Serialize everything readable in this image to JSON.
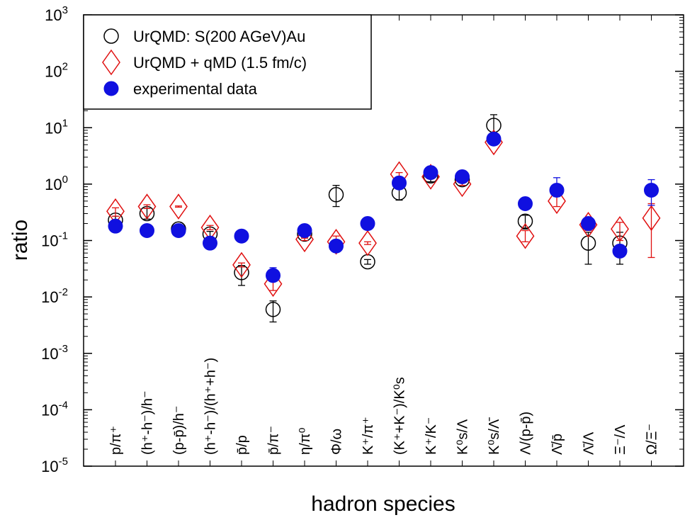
{
  "chart_data": {
    "type": "scatter",
    "xlabel": "hadron species",
    "ylabel": "ratio",
    "yscale": "log",
    "ylim": [
      1e-05,
      1000
    ],
    "y_ticks": [
      {
        "value": 1e-05,
        "base": "10",
        "exp": "-5"
      },
      {
        "value": 0.0001,
        "base": "10",
        "exp": "-4"
      },
      {
        "value": 0.001,
        "base": "10",
        "exp": "-3"
      },
      {
        "value": 0.01,
        "base": "10",
        "exp": "-2"
      },
      {
        "value": 0.1,
        "base": "10",
        "exp": "-1"
      },
      {
        "value": 1,
        "base": "10",
        "exp": "0"
      },
      {
        "value": 10,
        "base": "10",
        "exp": "1"
      },
      {
        "value": 100,
        "base": "10",
        "exp": "2"
      },
      {
        "value": 1000,
        "base": "10",
        "exp": "3"
      }
    ],
    "grid": false,
    "legend_position": "top-left",
    "categories": [
      "p/π⁺",
      "(h⁺-h⁻)/h⁻",
      "(p-p̄)/h⁻",
      "(h⁺-h⁻)/(h⁺+h⁻)",
      "p̄/p",
      "p̄/π⁻",
      "η/π⁰",
      "Φ/ω",
      "K⁺/π⁺",
      "(K⁺+K⁻)/K⁰s",
      "K⁺/K⁻",
      "K⁰s/Λ",
      "K⁰s/Λ̄",
      "Λ/(p-p̄)",
      "Λ̄/p̄",
      "Λ̄/Λ",
      "Ξ⁻/Λ",
      "Ω/Ξ⁻"
    ],
    "series": [
      {
        "name": "UrQMD: S(200 AGeV)Au",
        "marker": "open-circle",
        "color": "#000000",
        "points": [
          {
            "cat": 0,
            "y": 0.23,
            "lo": 0.2,
            "hi": 0.27
          },
          {
            "cat": 1,
            "y": 0.3,
            "lo": 0.24,
            "hi": 0.37
          },
          {
            "cat": 2,
            "y": 0.16,
            "lo": 0.14,
            "hi": 0.18
          },
          {
            "cat": 3,
            "y": 0.13,
            "lo": 0.115,
            "hi": 0.145
          },
          {
            "cat": 4,
            "y": 0.027,
            "lo": 0.016,
            "hi": 0.036
          },
          {
            "cat": 5,
            "y": 0.006,
            "lo": 0.0036,
            "hi": 0.0085
          },
          {
            "cat": 6,
            "y": 0.13,
            "lo": 0.115,
            "hi": 0.145
          },
          {
            "cat": 7,
            "y": 0.65,
            "lo": 0.4,
            "hi": 0.95
          },
          {
            "cat": 8,
            "y": 0.042,
            "lo": 0.038,
            "hi": 0.046
          },
          {
            "cat": 9,
            "y": 0.7,
            "lo": 0.52,
            "hi": 0.85
          },
          {
            "cat": 10,
            "y": 1.4,
            "lo": 1.1,
            "hi": 1.7
          },
          {
            "cat": 11,
            "y": 1.2,
            "lo": 0.95,
            "hi": 1.5
          },
          {
            "cat": 12,
            "y": 11.0,
            "lo": 7.5,
            "hi": 17.0
          },
          {
            "cat": 13,
            "y": 0.22,
            "lo": 0.16,
            "hi": 0.28
          },
          {
            "cat": 15,
            "y": 0.09,
            "lo": 0.038,
            "hi": 0.14
          },
          {
            "cat": 16,
            "y": 0.09,
            "lo": 0.038,
            "hi": 0.14
          }
        ]
      },
      {
        "name": "UrQMD + qMD (1.5 fm/c)",
        "marker": "open-diamond",
        "color": "#e01010",
        "points": [
          {
            "cat": 0,
            "y": 0.33,
            "lo": 0.27,
            "hi": 0.38
          },
          {
            "cat": 1,
            "y": 0.4,
            "lo": 0.37,
            "hi": 0.43
          },
          {
            "cat": 2,
            "y": 0.4,
            "lo": 0.39,
            "hi": 0.41
          },
          {
            "cat": 3,
            "y": 0.17,
            "lo": 0.155,
            "hi": 0.185
          },
          {
            "cat": 4,
            "y": 0.037,
            "lo": 0.034,
            "hi": 0.04
          },
          {
            "cat": 5,
            "y": 0.017,
            "lo": 0.013,
            "hi": 0.02
          },
          {
            "cat": 6,
            "y": 0.105,
            "lo": 0.1,
            "hi": 0.11
          },
          {
            "cat": 7,
            "y": 0.095,
            "lo": 0.08,
            "hi": 0.12
          },
          {
            "cat": 8,
            "y": 0.09,
            "lo": 0.085,
            "hi": 0.095
          },
          {
            "cat": 9,
            "y": 1.5,
            "lo": 1.3,
            "hi": 1.6
          },
          {
            "cat": 10,
            "y": 1.35,
            "lo": 1.25,
            "hi": 1.45
          },
          {
            "cat": 11,
            "y": 1.0,
            "lo": 0.95,
            "hi": 1.05
          },
          {
            "cat": 12,
            "y": 5.5,
            "lo": 5.2,
            "hi": 5.8
          },
          {
            "cat": 13,
            "y": 0.12,
            "lo": 0.095,
            "hi": 0.15
          },
          {
            "cat": 14,
            "y": 0.5,
            "lo": 0.4,
            "hi": 0.62
          },
          {
            "cat": 15,
            "y": 0.19,
            "lo": 0.15,
            "hi": 0.22
          },
          {
            "cat": 16,
            "y": 0.16,
            "lo": 0.1,
            "hi": 0.21
          },
          {
            "cat": 17,
            "y": 0.25,
            "lo": 0.05,
            "hi": 0.45
          }
        ]
      },
      {
        "name": "experimental data",
        "marker": "filled-circle",
        "color": "#1010e0",
        "points": [
          {
            "cat": 0,
            "y": 0.18
          },
          {
            "cat": 1,
            "y": 0.15
          },
          {
            "cat": 2,
            "y": 0.15
          },
          {
            "cat": 3,
            "y": 0.09
          },
          {
            "cat": 4,
            "y": 0.12
          },
          {
            "cat": 5,
            "y": 0.024,
            "lo": 0.019,
            "hi": 0.033
          },
          {
            "cat": 6,
            "y": 0.15
          },
          {
            "cat": 7,
            "y": 0.08,
            "lo": 0.065,
            "hi": 0.1
          },
          {
            "cat": 8,
            "y": 0.2
          },
          {
            "cat": 9,
            "y": 1.05
          },
          {
            "cat": 10,
            "y": 1.6
          },
          {
            "cat": 11,
            "y": 1.35
          },
          {
            "cat": 12,
            "y": 6.3
          },
          {
            "cat": 13,
            "y": 0.45
          },
          {
            "cat": 14,
            "y": 0.78,
            "lo": 0.6,
            "hi": 1.3
          },
          {
            "cat": 15,
            "y": 0.2
          },
          {
            "cat": 16,
            "y": 0.065
          },
          {
            "cat": 17,
            "y": 0.78,
            "lo": 0.42,
            "hi": 1.2
          }
        ]
      }
    ]
  }
}
